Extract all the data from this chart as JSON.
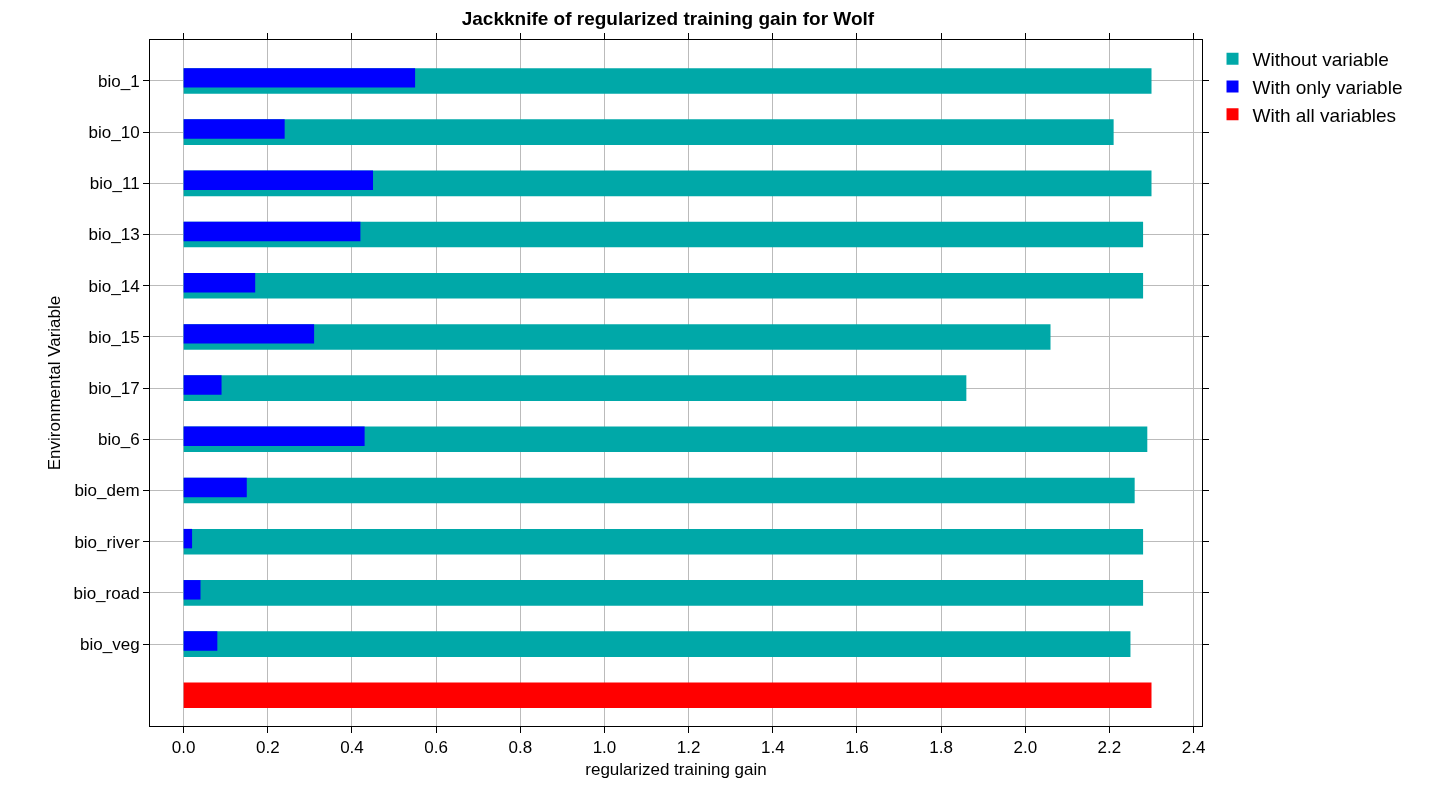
{
  "chart_data": {
    "type": "bar",
    "orientation": "horizontal",
    "title": "Jackknife of regularized training gain for Wolf",
    "xlabel": "regularized training gain",
    "ylabel": "Environmental Variable",
    "categories": [
      "bio_1",
      "bio_10",
      "bio_11",
      "bio_13",
      "bio_14",
      "bio_15",
      "bio_17",
      "bio_6",
      "bio_dem",
      "bio_river",
      "bio_road",
      "bio_veg",
      null
    ],
    "series": [
      {
        "name": "Without variable",
        "color": "#00a8a8",
        "values": [
          2.3,
          2.21,
          2.3,
          2.28,
          2.28,
          2.06,
          1.86,
          2.29,
          2.26,
          2.28,
          2.28,
          2.25,
          null
        ]
      },
      {
        "name": "With only variable",
        "color": "#0000ff",
        "values": [
          0.55,
          0.24,
          0.45,
          0.42,
          0.17,
          0.31,
          0.09,
          0.43,
          0.15,
          0.02,
          0.04,
          0.08,
          null
        ]
      },
      {
        "name": "With all variables",
        "color": "#ff0000",
        "values": [
          null,
          null,
          null,
          null,
          null,
          null,
          null,
          null,
          null,
          null,
          null,
          null,
          2.3
        ]
      }
    ],
    "xlim": [
      -0.08,
      2.42
    ],
    "xticks": [
      {
        "value": 0,
        "label": "0.0"
      },
      0.2,
      0.4,
      0.6,
      0.8,
      {
        "value": 1,
        "label": "1.0"
      },
      1.2,
      1.4,
      1.6,
      1.8,
      {
        "value": 2,
        "label": "2.0"
      },
      2.2,
      2.4
    ],
    "grid": true,
    "legend": "top right"
  }
}
